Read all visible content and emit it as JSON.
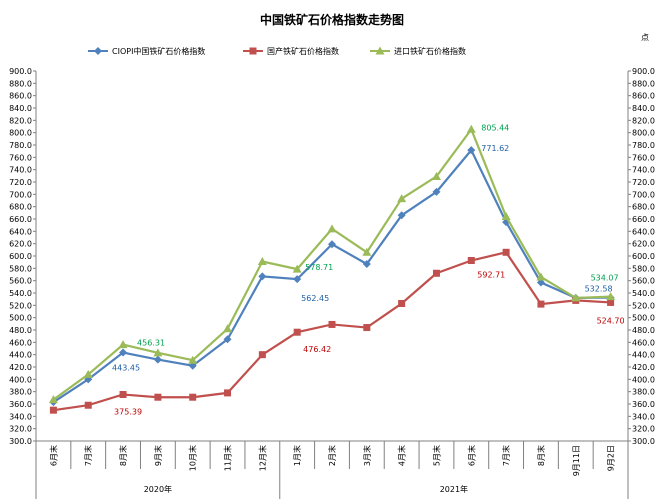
{
  "chart_data": {
    "type": "line",
    "title": "中国铁矿石价格指数走势图",
    "unit_label": "点",
    "ylim": [
      300,
      900
    ],
    "ytick_step": 20,
    "grid": false,
    "legend_position": "top",
    "categories": [
      "6月末",
      "7月末",
      "8月末",
      "9月末",
      "10月末",
      "11月末",
      "12月末",
      "1月末",
      "2月末",
      "3月末",
      "4月末",
      "5月末",
      "6月末",
      "7月末",
      "8月末",
      "9月11日",
      "9月2日"
    ],
    "year_groups": [
      {
        "label": "2020年",
        "start": 0,
        "end": 6
      },
      {
        "label": "2021年",
        "start": 7,
        "end": 16
      }
    ],
    "series": [
      {
        "name": "CIOPI中国铁矿石价格指数",
        "color": "#4f81bd",
        "label_color": "#1f5fa6",
        "marker": "diamond",
        "values": [
          363,
          400,
          443.45,
          432,
          422,
          465,
          567,
          562.45,
          619,
          587,
          666,
          704,
          771.62,
          655,
          557,
          532,
          532.58
        ]
      },
      {
        "name": "国产铁矿石价格指数",
        "color": "#c0504d",
        "label_color": "#c00000",
        "marker": "square",
        "values": [
          350,
          358,
          375.39,
          371,
          371,
          378,
          440,
          476.42,
          489,
          484,
          523,
          572,
          592.71,
          606,
          522,
          528,
          524.7
        ]
      },
      {
        "name": "进口铁矿石价格指数",
        "color": "#9bbb59",
        "label_color": "#00a050",
        "marker": "triangle",
        "values": [
          367,
          408,
          456.31,
          443,
          431,
          482,
          591,
          578.71,
          644,
          606,
          693,
          729,
          805.44,
          664,
          566,
          532,
          534.07
        ]
      }
    ],
    "data_labels": [
      {
        "series": 0,
        "index": 2,
        "text": "443.45",
        "dx": 3,
        "dy": 18
      },
      {
        "series": 0,
        "index": 7,
        "text": "562.45",
        "dx": 18,
        "dy": 22
      },
      {
        "series": 0,
        "index": 12,
        "text": "771.62",
        "dx": 24,
        "dy": 1
      },
      {
        "series": 0,
        "index": 16,
        "text": "532.58",
        "dx": -12,
        "dy": -6
      },
      {
        "series": 1,
        "index": 2,
        "text": "375.39",
        "dx": 5,
        "dy": 20
      },
      {
        "series": 1,
        "index": 7,
        "text": "476.42",
        "dx": 20,
        "dy": 20
      },
      {
        "series": 1,
        "index": 12,
        "text": "592.71",
        "dx": 20,
        "dy": 17
      },
      {
        "series": 1,
        "index": 16,
        "text": "524.70",
        "dx": 0,
        "dy": 21
      },
      {
        "series": 2,
        "index": 2,
        "text": "456.31",
        "dx": 28,
        "dy": 1
      },
      {
        "series": 2,
        "index": 7,
        "text": "578.71",
        "dx": 22,
        "dy": 1
      },
      {
        "series": 2,
        "index": 12,
        "text": "805.44",
        "dx": 24,
        "dy": 1
      },
      {
        "series": 2,
        "index": 16,
        "text": "534.07",
        "dx": -6,
        "dy": -16
      }
    ]
  }
}
